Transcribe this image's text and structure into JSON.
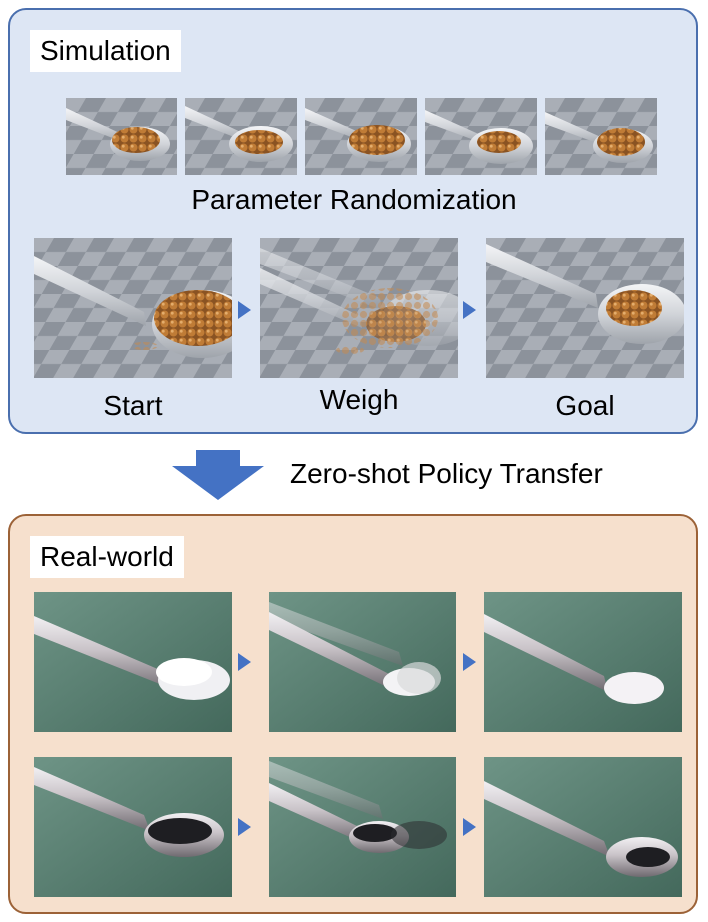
{
  "simulation": {
    "title": "Simulation",
    "randomization_label": "Parameter Randomization",
    "steps": [
      "Start",
      "Weigh",
      "Goal"
    ]
  },
  "transfer_label": "Zero-shot Policy Transfer",
  "real_world": {
    "title": "Real-world"
  },
  "colors": {
    "sim_panel_fill": "#dde6f4",
    "sim_panel_border": "#4a6fae",
    "real_panel_fill": "#f6e0cd",
    "real_panel_border": "#9c6237",
    "arrow": "#4472c4",
    "bead": "#b5732f",
    "powder_white": "#f2f2f4",
    "powder_black": "#1e1e22",
    "real_background": "#4f7a6c"
  }
}
